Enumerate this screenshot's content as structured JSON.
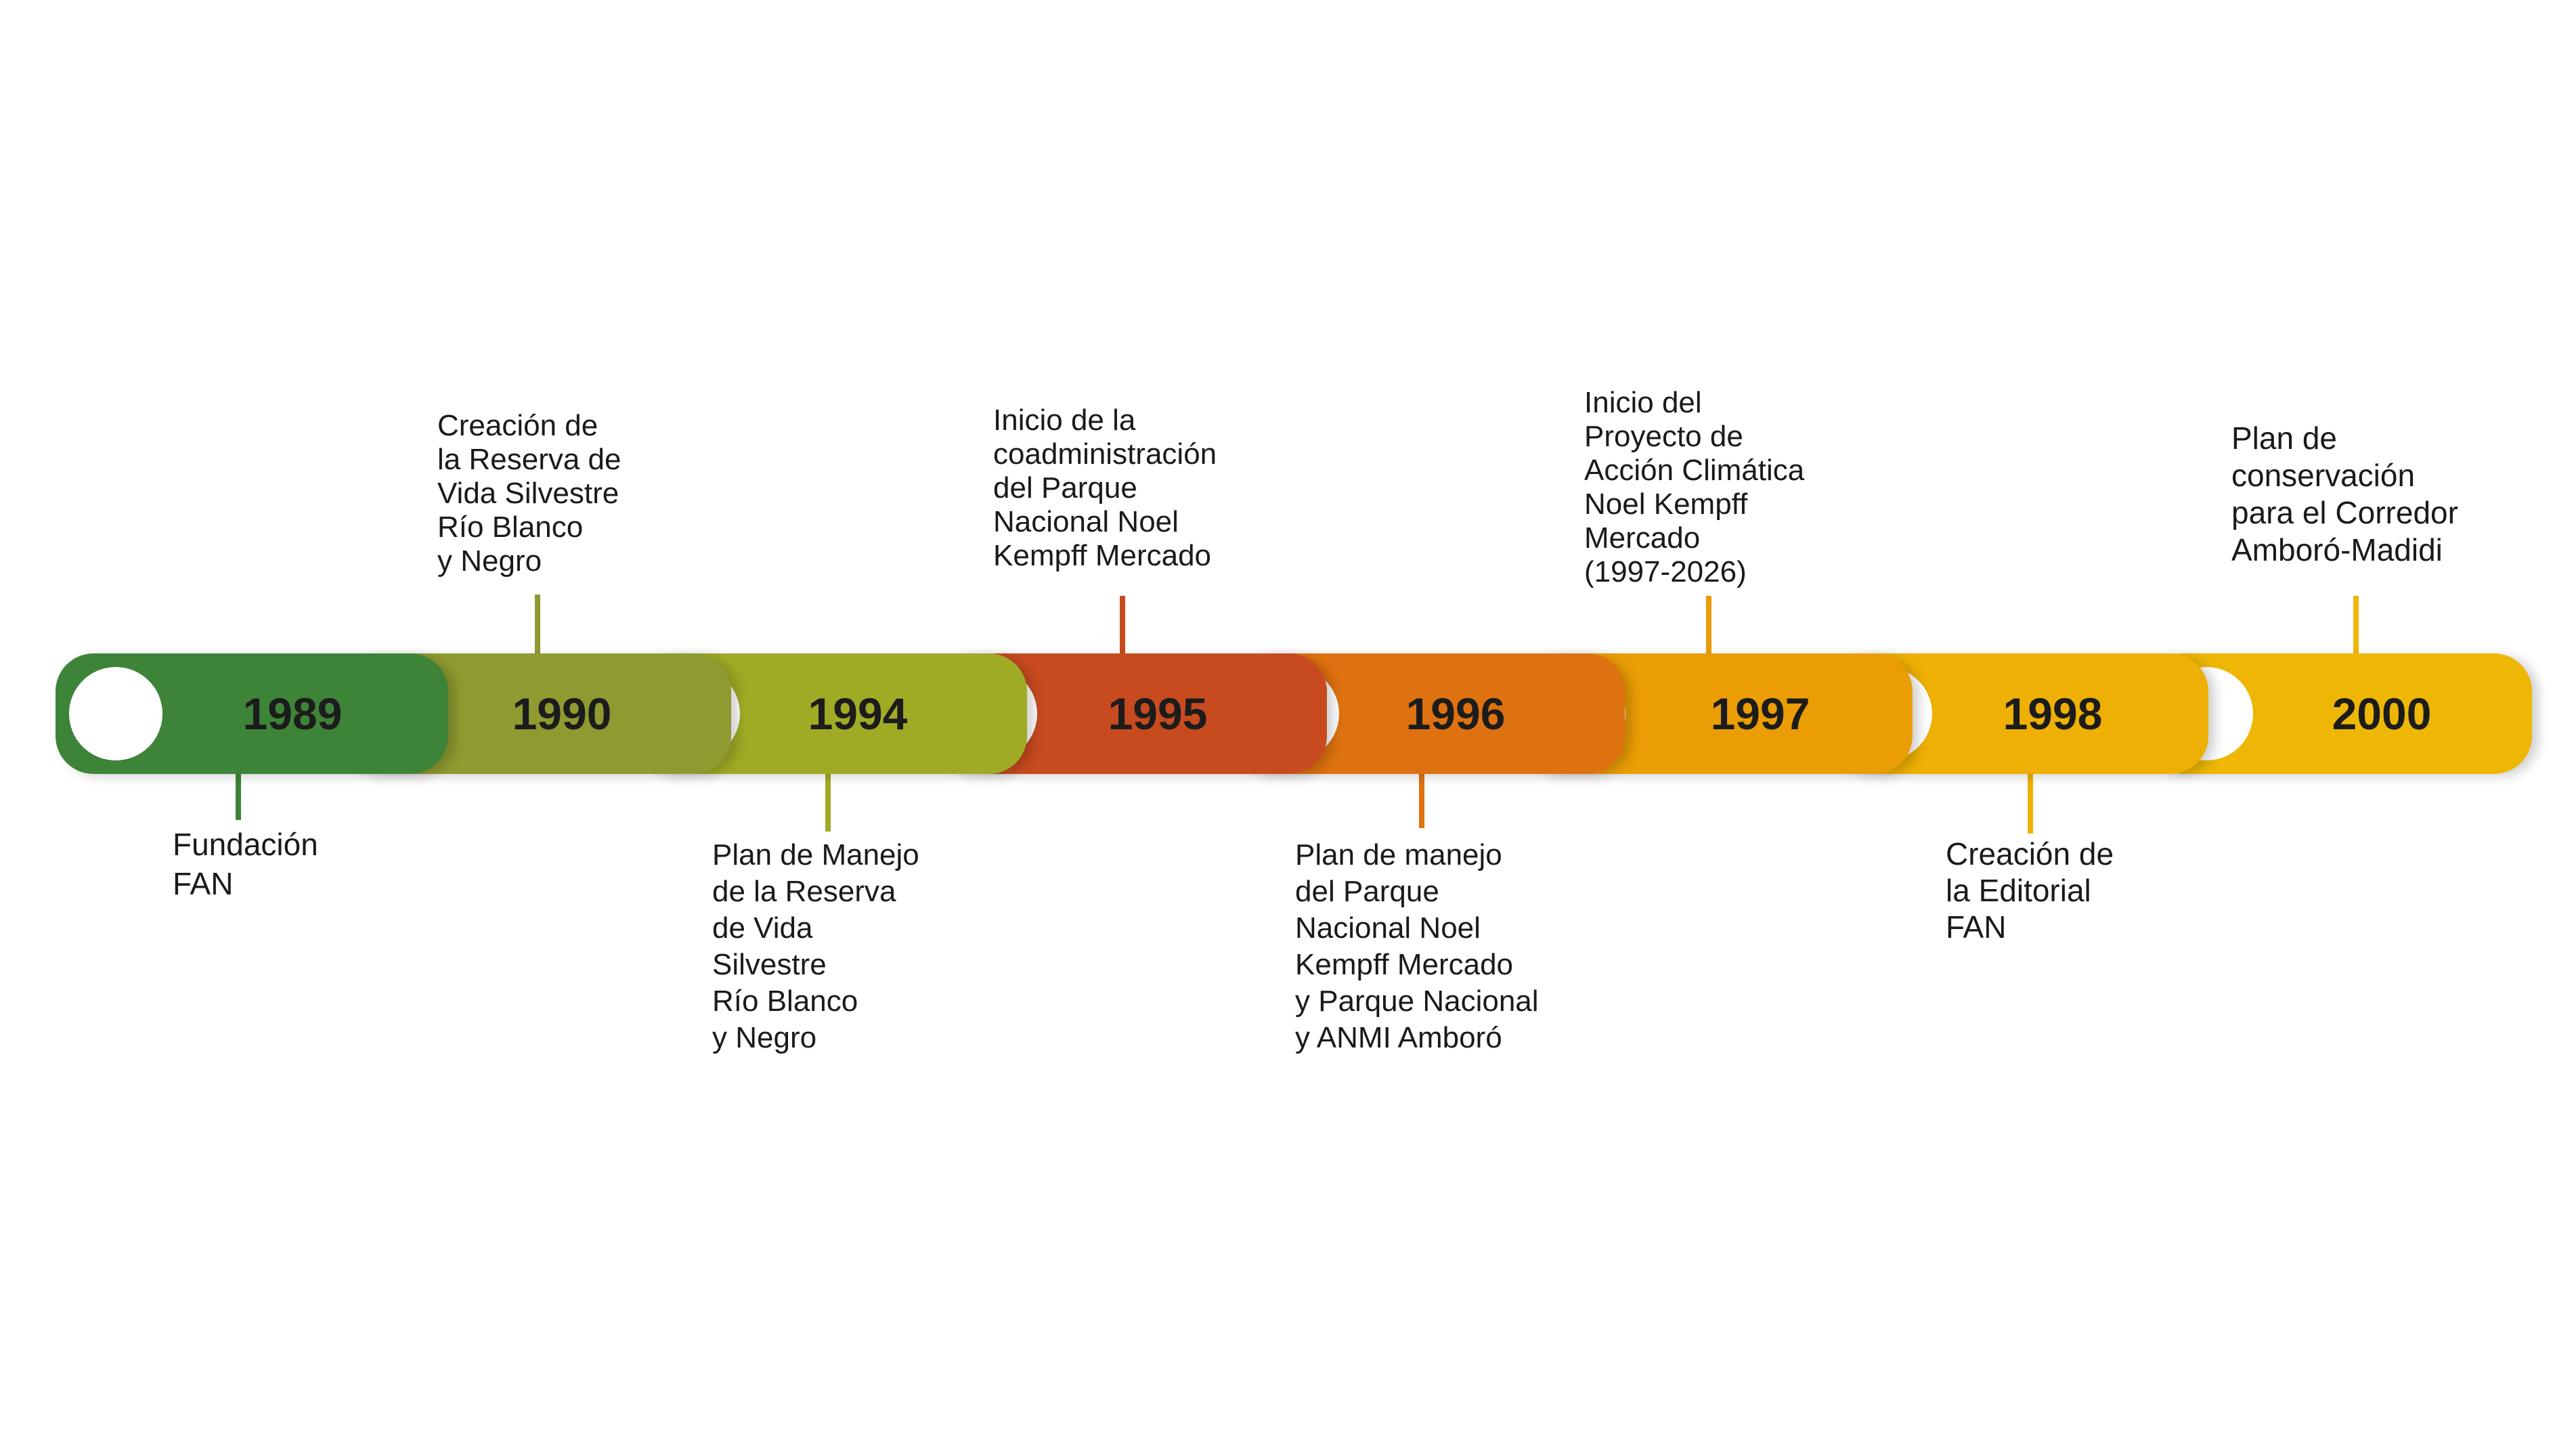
{
  "events": [
    {
      "year": "1989",
      "color": "#3e8438",
      "label": "Fundación\nFAN"
    },
    {
      "year": "1990",
      "color": "#8f9a30",
      "label": "Creación de\nla Reserva de\nVida Silvestre\nRío Blanco\ny Negro"
    },
    {
      "year": "1994",
      "color": "#a0ab25",
      "label": "Plan de Manejo\nde la Reserva\nde Vida\nSilvestre\nRío Blanco\ny Negro"
    },
    {
      "year": "1995",
      "color": "#c84b1f",
      "label": "Inicio de la\ncoadministración\ndel Parque\nNacional Noel\nKempff Mercado"
    },
    {
      "year": "1996",
      "color": "#df7210",
      "label": "Plan de manejo\ndel Parque\nNacional Noel\nKempff Mercado\ny Parque Nacional\ny ANMI Amboró"
    },
    {
      "year": "1997",
      "color": "#eb9d05",
      "label": "Inicio del\nProyecto de\nAcción Climática\nNoel Kempff\nMercado\n(1997-2026)"
    },
    {
      "year": "1998",
      "color": "#eeb004",
      "label": "Creación de\nla Editorial\nFAN"
    },
    {
      "year": "2000",
      "color": "#eeb705",
      "label": "Plan de\nconservación\npara el Corredor\nAmboró-Madidi"
    }
  ]
}
